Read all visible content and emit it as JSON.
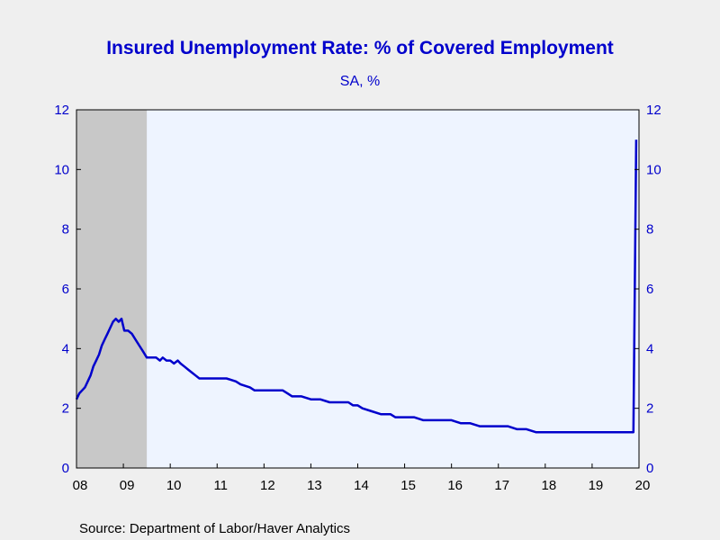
{
  "chart_data": {
    "type": "line",
    "title": "Insured Unemployment Rate: % of Covered Employment",
    "subtitle": "SA, %",
    "source": "Source:  Department of Labor/Haver Analytics",
    "xlabel": "",
    "ylabel": "",
    "xlim": [
      2008.0,
      2020.0
    ],
    "ylim": [
      0,
      12
    ],
    "y_ticks": [
      0,
      2,
      4,
      6,
      8,
      10,
      12
    ],
    "y_ticks_right": true,
    "x_ticks": [
      {
        "pos": 2008,
        "label": "08"
      },
      {
        "pos": 2009,
        "label": "09"
      },
      {
        "pos": 2010,
        "label": "10"
      },
      {
        "pos": 2011,
        "label": "11"
      },
      {
        "pos": 2012,
        "label": "12"
      },
      {
        "pos": 2013,
        "label": "13"
      },
      {
        "pos": 2014,
        "label": "14"
      },
      {
        "pos": 2015,
        "label": "15"
      },
      {
        "pos": 2016,
        "label": "16"
      },
      {
        "pos": 2017,
        "label": "17"
      },
      {
        "pos": 2018,
        "label": "18"
      },
      {
        "pos": 2019,
        "label": "19"
      },
      {
        "pos": 2020,
        "label": "20"
      }
    ],
    "grid": false,
    "recession_shading": [
      {
        "start": 2008.0,
        "end": 2009.5
      }
    ],
    "colors": {
      "line": "#0000cc",
      "plot_bg": "#eef4ff",
      "recession": "#c8c8c8",
      "page_bg": "#efefef",
      "text": "#0000cc"
    },
    "series": [
      {
        "name": "Insured Unemployment Rate",
        "points": [
          [
            2008.0,
            2.3
          ],
          [
            2008.06,
            2.5
          ],
          [
            2008.12,
            2.6
          ],
          [
            2008.18,
            2.7
          ],
          [
            2008.24,
            2.9
          ],
          [
            2008.3,
            3.1
          ],
          [
            2008.36,
            3.4
          ],
          [
            2008.42,
            3.6
          ],
          [
            2008.48,
            3.8
          ],
          [
            2008.54,
            4.1
          ],
          [
            2008.6,
            4.3
          ],
          [
            2008.66,
            4.5
          ],
          [
            2008.72,
            4.7
          ],
          [
            2008.78,
            4.9
          ],
          [
            2008.84,
            5.0
          ],
          [
            2008.9,
            4.9
          ],
          [
            2008.96,
            5.0
          ],
          [
            2009.02,
            4.6
          ],
          [
            2009.1,
            4.6
          ],
          [
            2009.18,
            4.5
          ],
          [
            2009.26,
            4.3
          ],
          [
            2009.34,
            4.1
          ],
          [
            2009.42,
            3.9
          ],
          [
            2009.5,
            3.7
          ],
          [
            2009.6,
            3.7
          ],
          [
            2009.7,
            3.7
          ],
          [
            2009.78,
            3.6
          ],
          [
            2009.84,
            3.7
          ],
          [
            2009.92,
            3.6
          ],
          [
            2010.0,
            3.6
          ],
          [
            2010.08,
            3.5
          ],
          [
            2010.16,
            3.6
          ],
          [
            2010.22,
            3.5
          ],
          [
            2010.3,
            3.4
          ],
          [
            2010.38,
            3.3
          ],
          [
            2010.46,
            3.2
          ],
          [
            2010.54,
            3.1
          ],
          [
            2010.62,
            3.0
          ],
          [
            2010.8,
            3.0
          ],
          [
            2011.0,
            3.0
          ],
          [
            2011.2,
            3.0
          ],
          [
            2011.4,
            2.9
          ],
          [
            2011.5,
            2.8
          ],
          [
            2011.7,
            2.7
          ],
          [
            2011.8,
            2.6
          ],
          [
            2012.0,
            2.6
          ],
          [
            2012.3,
            2.6
          ],
          [
            2012.4,
            2.6
          ],
          [
            2012.5,
            2.5
          ],
          [
            2012.6,
            2.4
          ],
          [
            2012.8,
            2.4
          ],
          [
            2013.0,
            2.3
          ],
          [
            2013.2,
            2.3
          ],
          [
            2013.4,
            2.2
          ],
          [
            2013.6,
            2.2
          ],
          [
            2013.8,
            2.2
          ],
          [
            2013.9,
            2.1
          ],
          [
            2014.0,
            2.1
          ],
          [
            2014.1,
            2.0
          ],
          [
            2014.3,
            1.9
          ],
          [
            2014.5,
            1.8
          ],
          [
            2014.7,
            1.8
          ],
          [
            2014.8,
            1.7
          ],
          [
            2015.0,
            1.7
          ],
          [
            2015.2,
            1.7
          ],
          [
            2015.4,
            1.6
          ],
          [
            2015.6,
            1.6
          ],
          [
            2015.8,
            1.6
          ],
          [
            2016.0,
            1.6
          ],
          [
            2016.2,
            1.5
          ],
          [
            2016.4,
            1.5
          ],
          [
            2016.6,
            1.4
          ],
          [
            2016.8,
            1.4
          ],
          [
            2017.0,
            1.4
          ],
          [
            2017.2,
            1.4
          ],
          [
            2017.4,
            1.3
          ],
          [
            2017.6,
            1.3
          ],
          [
            2017.8,
            1.2
          ],
          [
            2018.0,
            1.2
          ],
          [
            2018.3,
            1.2
          ],
          [
            2018.6,
            1.2
          ],
          [
            2018.9,
            1.2
          ],
          [
            2019.2,
            1.2
          ],
          [
            2019.5,
            1.2
          ],
          [
            2019.8,
            1.2
          ],
          [
            2019.88,
            1.2
          ],
          [
            2019.94,
            11.0
          ]
        ]
      }
    ]
  }
}
